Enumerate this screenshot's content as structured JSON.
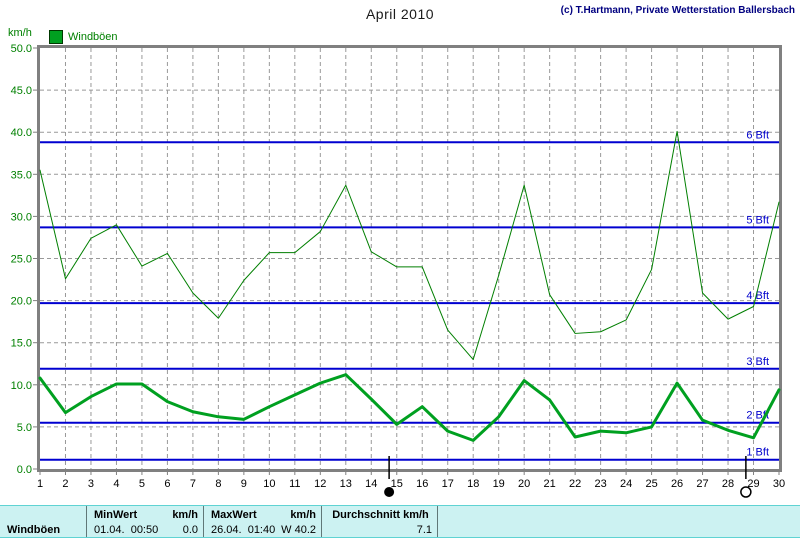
{
  "header": {
    "title": "April 2010",
    "copyright": "(c) T.Hartmann, Private Wetterstation Ballersbach"
  },
  "axis": {
    "unit_label": "km/h"
  },
  "legend": {
    "label": "Windböen"
  },
  "colors": {
    "series_thin": "#007F00",
    "series_thick": "#00A020",
    "axis_text_green": "#008000",
    "x_text": "#000000",
    "grid": "#999999",
    "frame": "#808080",
    "beaufort_line": "#0000D0",
    "beaufort_label": "#0000CC",
    "copyright": "#000080",
    "table_bg": "#CCF2F2"
  },
  "chart_data": {
    "type": "line",
    "title": "April 2010",
    "xlabel": "",
    "ylabel": "km/h",
    "ylim": [
      0,
      50
    ],
    "ytick_step": 5,
    "grid": true,
    "legend_position": "top-left",
    "x": [
      1,
      2,
      3,
      4,
      5,
      6,
      7,
      8,
      9,
      10,
      11,
      12,
      13,
      14,
      15,
      16,
      17,
      18,
      19,
      20,
      21,
      22,
      23,
      24,
      25,
      26,
      27,
      28,
      29,
      30
    ],
    "series": [
      {
        "name": "windboeen-upper-line",
        "legend": "Windböen",
        "width": 1,
        "color": "#007F00",
        "values": [
          35.5,
          22.6,
          27.4,
          29.0,
          24.1,
          25.6,
          20.9,
          17.9,
          22.4,
          25.7,
          25.7,
          28.2,
          33.7,
          25.8,
          24.0,
          24.0,
          16.5,
          13.0,
          23.0,
          33.7,
          20.7,
          16.1,
          16.3,
          17.7,
          23.7,
          40.1,
          20.9,
          17.8,
          19.3,
          31.7
        ]
      },
      {
        "name": "windboeen-lower-line",
        "legend": "Windböen",
        "width": 3,
        "color": "#00A020",
        "values": [
          10.8,
          6.7,
          8.6,
          10.1,
          10.1,
          8.0,
          6.8,
          6.2,
          5.9,
          7.4,
          8.8,
          10.2,
          11.2,
          8.3,
          5.3,
          7.4,
          4.5,
          3.4,
          6.2,
          10.5,
          8.2,
          3.8,
          4.5,
          4.3,
          5.0,
          10.2,
          5.8,
          4.6,
          3.7,
          9.4
        ]
      }
    ],
    "beaufort_lines": [
      {
        "label": "1 Bft",
        "value": 1.1
      },
      {
        "label": "2 Bft",
        "value": 5.5
      },
      {
        "label": "3 Bft",
        "value": 11.9
      },
      {
        "label": "4 Bft",
        "value": 19.7
      },
      {
        "label": "5 Bft",
        "value": 28.7
      },
      {
        "label": "6 Bft",
        "value": 38.8
      }
    ],
    "moon_markers": [
      {
        "x": 14.7,
        "symbol": "new-moon"
      },
      {
        "x": 28.7,
        "symbol": "full-moon"
      }
    ]
  },
  "summary_table": {
    "row_label": "Windböen",
    "columns": [
      {
        "header_left": "MinWert",
        "header_right": "km/h",
        "value_left": "01.04.  00:50",
        "value_right": "0.0"
      },
      {
        "header_left": "MaxWert",
        "header_right": "km/h",
        "value_left": "26.04.  01:40",
        "value_right": "W 40.2"
      },
      {
        "header_center": "Durchschnitt km/h",
        "value_right": "7.1"
      }
    ]
  }
}
